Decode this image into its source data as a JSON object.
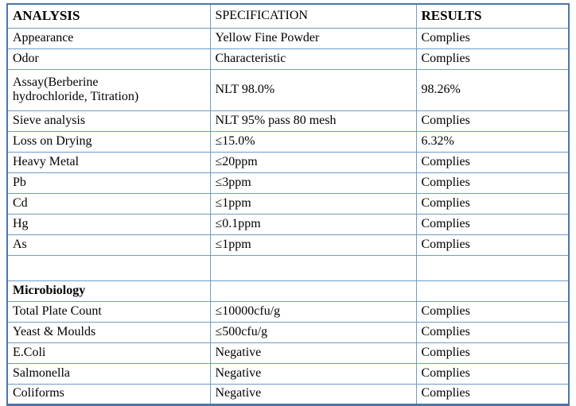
{
  "colors": {
    "border_outer": "#4a76a8",
    "border_inner": "#6f9bc8",
    "text": "#000000",
    "bg": "#ffffff"
  },
  "table": {
    "columns": [
      {
        "label": "ANALYSIS"
      },
      {
        "label": "SPECIFICATION"
      },
      {
        "label": "RESULTS"
      }
    ],
    "rows": [
      {
        "cells": [
          "Appearance",
          "Yellow Fine Powder",
          "Complies"
        ]
      },
      {
        "cells": [
          "Odor",
          "Characteristic",
          "Complies"
        ]
      },
      {
        "cells": [
          "Assay(Berberine hydrochloride, Titration)",
          "NLT 98.0%",
          "98.26%"
        ],
        "tall": true
      },
      {
        "cells": [
          "Sieve analysis",
          "NLT 95% pass 80 mesh",
          "Complies"
        ]
      },
      {
        "cells": [
          "Loss on Drying",
          "≤15.0%",
          "6.32%"
        ]
      },
      {
        "cells": [
          "Heavy Metal",
          "≤20ppm",
          "Complies"
        ]
      },
      {
        "cells": [
          "Pb",
          "≤3ppm",
          "Complies"
        ]
      },
      {
        "cells": [
          "Cd",
          "≤1ppm",
          "Complies"
        ]
      },
      {
        "cells": [
          "Hg",
          "≤0.1ppm",
          "Complies"
        ]
      },
      {
        "cells": [
          "As",
          "≤1ppm",
          "Complies"
        ]
      },
      {
        "cells": [
          "",
          "",
          ""
        ],
        "spacer": true
      },
      {
        "cells": [
          "Microbiology",
          "",
          ""
        ],
        "section": true
      },
      {
        "cells": [
          "Total Plate Count",
          "≤10000cfu/g",
          "Complies"
        ]
      },
      {
        "cells": [
          "Yeast & Moulds",
          "≤500cfu/g",
          "Complies"
        ]
      },
      {
        "cells": [
          "E.Coli",
          "Negative",
          "Complies"
        ]
      },
      {
        "cells": [
          "Salmonella",
          "Negative",
          "Complies"
        ]
      },
      {
        "cells": [
          "Coliforms",
          "Negative",
          "Complies"
        ]
      }
    ]
  }
}
